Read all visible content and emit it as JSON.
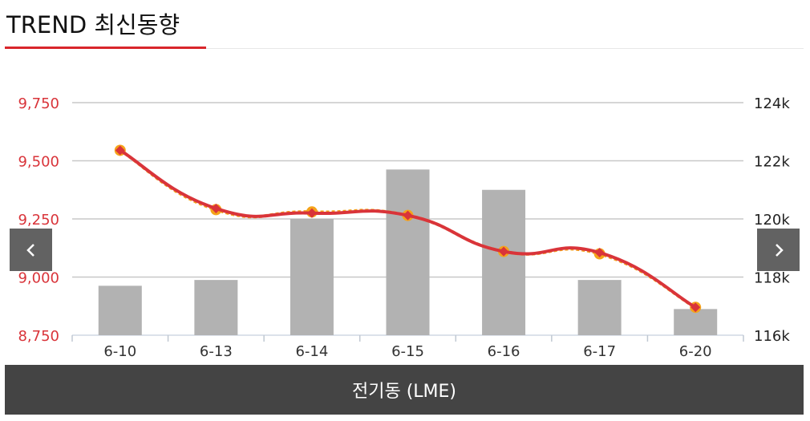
{
  "title": "TREND 최신동향",
  "footer_label": "전기동 (LME)",
  "nav": {
    "prev_icon": "chevron-left-icon",
    "next_icon": "chevron-right-icon"
  },
  "colors": {
    "accent": "#d9262b",
    "bar": "#b2b2b2",
    "line_primary": "#d9343a",
    "line_secondary": "#f5a31a",
    "left_axis_text": "#d9343a",
    "right_axis_text": "#222222",
    "grid": "#c8c8c8",
    "footer_bg": "#444444"
  },
  "chart_data": {
    "type": "bar+line",
    "categories": [
      "6-10",
      "6-13",
      "6-14",
      "6-15",
      "6-16",
      "6-17",
      "6-20"
    ],
    "left_axis": {
      "min": 8750,
      "max": 9750,
      "ticks": [
        "9,750",
        "9,500",
        "9,250",
        "9,000",
        "8,750"
      ]
    },
    "right_axis": {
      "min": 116000,
      "max": 124000,
      "ticks": [
        "124k",
        "122k",
        "120k",
        "118k",
        "116k"
      ]
    },
    "bars": {
      "axis": "right",
      "values": [
        117.7,
        117.9,
        120.0,
        121.7,
        121.0,
        117.9,
        116.9
      ],
      "unit": "k"
    },
    "lines": [
      {
        "style": "solid",
        "axis": "left",
        "values": [
          9545,
          9295,
          9275,
          9265,
          9110,
          9105,
          8870
        ]
      },
      {
        "style": "dotted",
        "axis": "left",
        "values": [
          9545,
          9290,
          9280,
          9265,
          9110,
          9100,
          8870
        ]
      }
    ],
    "grid": true,
    "legend": "none"
  }
}
